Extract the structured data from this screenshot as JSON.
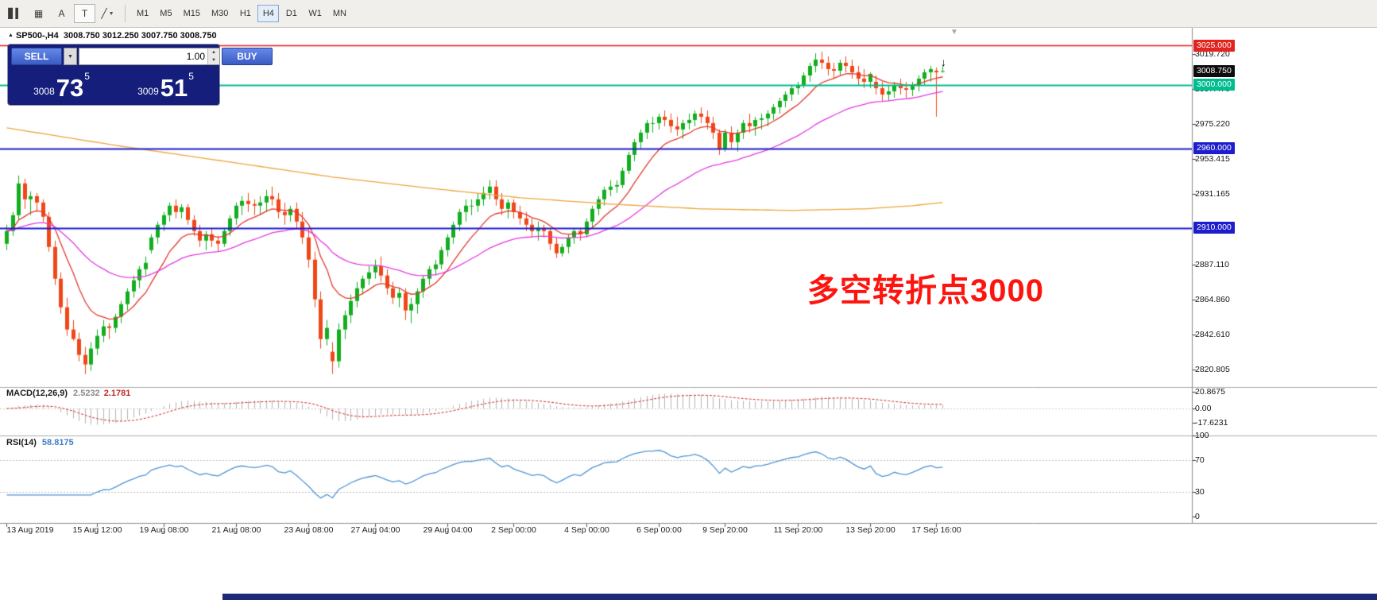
{
  "window": {
    "app": "MetaTrader 4 terminal",
    "chart_title": "SP500-,H4"
  },
  "toolbar": {
    "tools": [
      {
        "name": "candlestick-chart-icon",
        "glyph": "▋▍",
        "dropdown": false,
        "boxed": false
      },
      {
        "name": "grid-icon",
        "glyph": "▦",
        "dropdown": false,
        "boxed": false
      },
      {
        "name": "text-tool-icon",
        "glyph": "A",
        "dropdown": false,
        "boxed": false
      },
      {
        "name": "template-tool-icon",
        "glyph": "T",
        "dropdown": false,
        "boxed": true
      },
      {
        "name": "line-style-tool-icon",
        "glyph": "╱",
        "dropdown": true,
        "boxed": false
      }
    ],
    "timeframes": [
      "M1",
      "M5",
      "M15",
      "M30",
      "H1",
      "H4",
      "D1",
      "W1",
      "MN"
    ],
    "active_timeframe": "H4"
  },
  "chart": {
    "symbol_title": "SP500-,H4",
    "ohlc_text": "3008.750 3012.250 3007.750 3008.750"
  },
  "trade_panel": {
    "sell_label": "SELL",
    "buy_label": "BUY",
    "volume": "1.00",
    "bid_prefix": "3008",
    "bid_big": "73",
    "bid_sup": "5",
    "ask_prefix": "3009",
    "ask_big": "51",
    "ask_sup": "5"
  },
  "annotation": {
    "text": "多空转折点3000",
    "color": "#fe140e"
  },
  "icons": {
    "shift_marker": "▼",
    "price_arrow": "↓"
  },
  "price_scale": {
    "badges": [
      {
        "label": "3025.000",
        "value": 3025.0,
        "bg": "#e3231d"
      },
      {
        "label": "3008.750",
        "value": 3008.75,
        "bg": "#0d0d0d"
      },
      {
        "label": "3000.000",
        "value": 3000.0,
        "bg": "#00bd90"
      },
      {
        "label": "2960.000",
        "value": 2960.0,
        "bg": "#1d1dce"
      },
      {
        "label": "2910.000",
        "value": 2910.0,
        "bg": "#1d1dce"
      }
    ],
    "ticks": [
      {
        "label": "3019.720",
        "value": 3019.72
      },
      {
        "label": "2997.470",
        "value": 2997.47
      },
      {
        "label": "2975.220",
        "value": 2975.22
      },
      {
        "label": "2953.415",
        "value": 2953.415
      },
      {
        "label": "2931.165",
        "value": 2931.165
      },
      {
        "label": "2887.110",
        "value": 2887.11
      },
      {
        "label": "2864.860",
        "value": 2864.86
      },
      {
        "label": "2842.610",
        "value": 2842.61
      },
      {
        "label": "2820.805",
        "value": 2820.805
      }
    ]
  },
  "macd_panel": {
    "title": "MACD(12,26,9)",
    "value_main": "2.5232",
    "value_signal": "2.1781",
    "scale": [
      {
        "label": "20.8675",
        "value": 20.8675
      },
      {
        "label": "0.00",
        "value": 0.0
      },
      {
        "label": "-17.6231",
        "value": -17.6231
      }
    ]
  },
  "rsi_panel": {
    "title": "RSI(14)",
    "value": "58.8175",
    "levels": [
      70,
      30
    ],
    "scale": [
      {
        "label": "100",
        "value": 100
      },
      {
        "label": "70",
        "value": 70
      },
      {
        "label": "30",
        "value": 30
      },
      {
        "label": "0",
        "value": 0
      }
    ]
  },
  "time_axis": [
    {
      "label": "13 Aug 2019",
      "bar": 0
    },
    {
      "label": "15 Aug 12:00",
      "bar": 15
    },
    {
      "label": "19 Aug 08:00",
      "bar": 26
    },
    {
      "label": "21 Aug 08:00",
      "bar": 38
    },
    {
      "label": "23 Aug 08:00",
      "bar": 50
    },
    {
      "label": "27 Aug 04:00",
      "bar": 61
    },
    {
      "label": "29 Aug 04:00",
      "bar": 73
    },
    {
      "label": "2 Sep 00:00",
      "bar": 84
    },
    {
      "label": "4 Sep 00:00",
      "bar": 96
    },
    {
      "label": "6 Sep 00:00",
      "bar": 108
    },
    {
      "label": "9 Sep 20:00",
      "bar": 119
    },
    {
      "label": "11 Sep 20:00",
      "bar": 131
    },
    {
      "label": "13 Sep 20:00",
      "bar": 143
    },
    {
      "label": "17 Sep 16:00",
      "bar": 154
    }
  ],
  "chart_data": {
    "type": "candlestick",
    "symbol": "SP500-",
    "timeframe": "H4",
    "title": "SP500- H4 with MACD(12,26,9) and RSI(14)",
    "current_bar": {
      "open": 3008.75,
      "high": 3012.25,
      "low": 3007.75,
      "close": 3008.75
    },
    "price_axis": {
      "min": 2815,
      "max": 3028
    },
    "colors": {
      "up": "#12ae1f",
      "down": "#f04718",
      "macd_hist": "#b5b5b5",
      "macd_signal": "#d22424",
      "rsi_line": "#4f94d6"
    },
    "hlines": [
      {
        "price": 3025.0,
        "color": "#f01616",
        "width": 1.5
      },
      {
        "price": 3000.0,
        "color": "#00bd90",
        "width": 2
      },
      {
        "price": 2960.0,
        "color": "#1d1dce",
        "width": 1.8
      },
      {
        "price": 2910.0,
        "color": "#1d1dce",
        "width": 1.8
      }
    ],
    "overlays": {
      "ma_fast": {
        "type": "ema",
        "period": 10,
        "color": "#e2372c"
      },
      "ma_mid": {
        "type": "ema",
        "period": 34,
        "color": "#e23ae2"
      },
      "ma_slow": {
        "type": "points",
        "color": "#eda43c",
        "points": [
          [
            0,
            2973
          ],
          [
            18,
            2962
          ],
          [
            36,
            2952
          ],
          [
            54,
            2942
          ],
          [
            70,
            2935
          ],
          [
            85,
            2929
          ],
          [
            100,
            2925
          ],
          [
            115,
            2922
          ],
          [
            130,
            2921
          ],
          [
            142,
            2922
          ],
          [
            150,
            2924
          ],
          [
            155,
            2926
          ]
        ]
      }
    },
    "candles": [
      [
        2900,
        2912,
        2896,
        2908
      ],
      [
        2908,
        2920,
        2905,
        2918
      ],
      [
        2918,
        2943,
        2915,
        2938
      ],
      [
        2938,
        2941,
        2922,
        2928
      ],
      [
        2928,
        2933,
        2918,
        2930
      ],
      [
        2930,
        2932,
        2920,
        2926
      ],
      [
        2926,
        2928,
        2914,
        2917
      ],
      [
        2917,
        2920,
        2895,
        2898
      ],
      [
        2898,
        2902,
        2874,
        2878
      ],
      [
        2878,
        2882,
        2856,
        2860
      ],
      [
        2860,
        2866,
        2842,
        2846
      ],
      [
        2846,
        2852,
        2839,
        2840
      ],
      [
        2840,
        2844,
        2826,
        2830
      ],
      [
        2830,
        2835,
        2818,
        2824
      ],
      [
        2824,
        2838,
        2820,
        2834
      ],
      [
        2834,
        2846,
        2830,
        2842
      ],
      [
        2842,
        2852,
        2838,
        2848
      ],
      [
        2848,
        2850,
        2840,
        2847
      ],
      [
        2847,
        2856,
        2844,
        2854
      ],
      [
        2854,
        2864,
        2850,
        2862
      ],
      [
        2862,
        2872,
        2858,
        2870
      ],
      [
        2870,
        2880,
        2866,
        2877
      ],
      [
        2877,
        2886,
        2872,
        2884
      ],
      [
        2884,
        2892,
        2880,
        2888
      ],
      [
        2896,
        2906,
        2894,
        2904
      ],
      [
        2904,
        2914,
        2900,
        2912
      ],
      [
        2912,
        2920,
        2908,
        2918
      ],
      [
        2918,
        2926,
        2914,
        2924
      ],
      [
        2924,
        2928,
        2916,
        2920
      ],
      [
        2920,
        2925,
        2916,
        2923
      ],
      [
        2923,
        2925,
        2912,
        2915
      ],
      [
        2915,
        2918,
        2905,
        2908
      ],
      [
        2908,
        2912,
        2898,
        2902
      ],
      [
        2902,
        2908,
        2896,
        2906
      ],
      [
        2906,
        2910,
        2898,
        2902
      ],
      [
        2902,
        2905,
        2895,
        2900
      ],
      [
        2900,
        2910,
        2898,
        2908
      ],
      [
        2908,
        2918,
        2905,
        2916
      ],
      [
        2916,
        2926,
        2912,
        2924
      ],
      [
        2924,
        2930,
        2918,
        2927
      ],
      [
        2927,
        2932,
        2920,
        2925
      ],
      [
        2925,
        2928,
        2918,
        2924
      ],
      [
        2924,
        2930,
        2918,
        2926
      ],
      [
        2926,
        2934,
        2920,
        2930
      ],
      [
        2930,
        2936,
        2924,
        2928
      ],
      [
        2928,
        2932,
        2916,
        2920
      ],
      [
        2920,
        2926,
        2912,
        2918
      ],
      [
        2918,
        2924,
        2914,
        2922
      ],
      [
        2922,
        2926,
        2910,
        2914
      ],
      [
        2914,
        2920,
        2900,
        2904
      ],
      [
        2904,
        2910,
        2885,
        2890
      ],
      [
        2890,
        2895,
        2860,
        2865
      ],
      [
        2865,
        2870,
        2834,
        2840
      ],
      [
        2840,
        2852,
        2836,
        2847
      ],
      [
        2832,
        2838,
        2818,
        2826
      ],
      [
        2826,
        2850,
        2822,
        2846
      ],
      [
        2846,
        2858,
        2840,
        2855
      ],
      [
        2855,
        2868,
        2850,
        2864
      ],
      [
        2864,
        2876,
        2860,
        2872
      ],
      [
        2872,
        2880,
        2868,
        2878
      ],
      [
        2878,
        2886,
        2874,
        2882
      ],
      [
        2882,
        2890,
        2878,
        2886
      ],
      [
        2886,
        2892,
        2876,
        2880
      ],
      [
        2880,
        2884,
        2868,
        2872
      ],
      [
        2872,
        2876,
        2862,
        2866
      ],
      [
        2866,
        2872,
        2860,
        2869
      ],
      [
        2869,
        2872,
        2852,
        2858
      ],
      [
        2858,
        2866,
        2850,
        2862
      ],
      [
        2862,
        2872,
        2856,
        2870
      ],
      [
        2870,
        2880,
        2866,
        2878
      ],
      [
        2878,
        2886,
        2874,
        2884
      ],
      [
        2884,
        2890,
        2880,
        2887
      ],
      [
        2887,
        2898,
        2884,
        2896
      ],
      [
        2896,
        2906,
        2892,
        2904
      ],
      [
        2904,
        2914,
        2900,
        2912
      ],
      [
        2912,
        2922,
        2908,
        2920
      ],
      [
        2920,
        2928,
        2914,
        2924
      ],
      [
        2924,
        2928,
        2918,
        2924
      ],
      [
        2924,
        2932,
        2920,
        2928
      ],
      [
        2928,
        2936,
        2924,
        2932
      ],
      [
        2932,
        2940,
        2928,
        2936
      ],
      [
        2936,
        2940,
        2924,
        2928
      ],
      [
        2928,
        2932,
        2918,
        2922
      ],
      [
        2922,
        2928,
        2916,
        2926
      ],
      [
        2926,
        2928,
        2916,
        2920
      ],
      [
        2920,
        2924,
        2912,
        2916
      ],
      [
        2916,
        2920,
        2908,
        2912
      ],
      [
        2912,
        2916,
        2904,
        2908
      ],
      [
        2908,
        2914,
        2902,
        2910
      ],
      [
        2910,
        2912,
        2904,
        2908
      ],
      [
        2908,
        2910,
        2896,
        2900
      ],
      [
        2900,
        2904,
        2891,
        2894
      ],
      [
        2894,
        2900,
        2892,
        2898
      ],
      [
        2898,
        2906,
        2894,
        2904
      ],
      [
        2904,
        2910,
        2900,
        2908
      ],
      [
        2908,
        2910,
        2902,
        2906
      ],
      [
        2906,
        2916,
        2904,
        2914
      ],
      [
        2914,
        2924,
        2910,
        2922
      ],
      [
        2922,
        2930,
        2918,
        2928
      ],
      [
        2928,
        2936,
        2924,
        2934
      ],
      [
        2934,
        2940,
        2930,
        2936
      ],
      [
        2936,
        2940,
        2932,
        2937
      ],
      [
        2937,
        2948,
        2935,
        2946
      ],
      [
        2946,
        2958,
        2944,
        2956
      ],
      [
        2956,
        2966,
        2952,
        2964
      ],
      [
        2964,
        2972,
        2960,
        2970
      ],
      [
        2970,
        2978,
        2966,
        2976
      ],
      [
        2976,
        2980,
        2970,
        2976
      ],
      [
        2976,
        2982,
        2972,
        2980
      ],
      [
        2980,
        2984,
        2974,
        2978
      ],
      [
        2978,
        2982,
        2970,
        2974
      ],
      [
        2974,
        2980,
        2968,
        2972
      ],
      [
        2972,
        2978,
        2966,
        2976
      ],
      [
        2976,
        2982,
        2972,
        2978
      ],
      [
        2978,
        2984,
        2974,
        2982
      ],
      [
        2982,
        2986,
        2976,
        2980
      ],
      [
        2980,
        2984,
        2972,
        2976
      ],
      [
        2976,
        2980,
        2966,
        2970
      ],
      [
        2970,
        2972,
        2956,
        2960
      ],
      [
        2960,
        2972,
        2958,
        2970
      ],
      [
        2970,
        2974,
        2960,
        2964
      ],
      [
        2964,
        2972,
        2958,
        2970
      ],
      [
        2970,
        2978,
        2966,
        2976
      ],
      [
        2976,
        2982,
        2970,
        2974
      ],
      [
        2974,
        2980,
        2968,
        2978
      ],
      [
        2978,
        2982,
        2972,
        2979
      ],
      [
        2979,
        2984,
        2974,
        2982
      ],
      [
        2982,
        2988,
        2978,
        2986
      ],
      [
        2986,
        2992,
        2982,
        2990
      ],
      [
        2990,
        2996,
        2986,
        2994
      ],
      [
        2994,
        3000,
        2990,
        2998
      ],
      [
        2998,
        3002,
        2994,
        3000
      ],
      [
        3000,
        3008,
        2998,
        3006
      ],
      [
        3006,
        3014,
        3002,
        3012
      ],
      [
        3012,
        3020,
        3008,
        3016
      ],
      [
        3016,
        3021,
        3010,
        3014
      ],
      [
        3014,
        3018,
        3006,
        3010
      ],
      [
        3010,
        3014,
        3004,
        3009
      ],
      [
        3009,
        3016,
        3006,
        3014
      ],
      [
        3014,
        3018,
        3008,
        3012
      ],
      [
        3012,
        3016,
        3004,
        3008
      ],
      [
        3008,
        3012,
        3000,
        3004
      ],
      [
        3004,
        3010,
        2998,
        3002
      ],
      [
        3002,
        3008,
        2998,
        3007
      ],
      [
        3002,
        3006,
        2994,
        2998
      ],
      [
        2998,
        3002,
        2990,
        2994
      ],
      [
        2994,
        3000,
        2990,
        2996
      ],
      [
        2996,
        3002,
        2992,
        3000
      ],
      [
        3000,
        3004,
        2994,
        2998
      ],
      [
        2998,
        3002,
        2992,
        2997
      ],
      [
        2997,
        3002,
        2993,
        3000
      ],
      [
        3000,
        3006,
        2996,
        3004
      ],
      [
        3004,
        3010,
        3000,
        3008
      ],
      [
        3008,
        3012,
        3002,
        3010
      ],
      [
        3009,
        3011,
        2980,
        3008
      ],
      [
        3008.75,
        3012.25,
        3007.75,
        3008.75
      ]
    ]
  }
}
